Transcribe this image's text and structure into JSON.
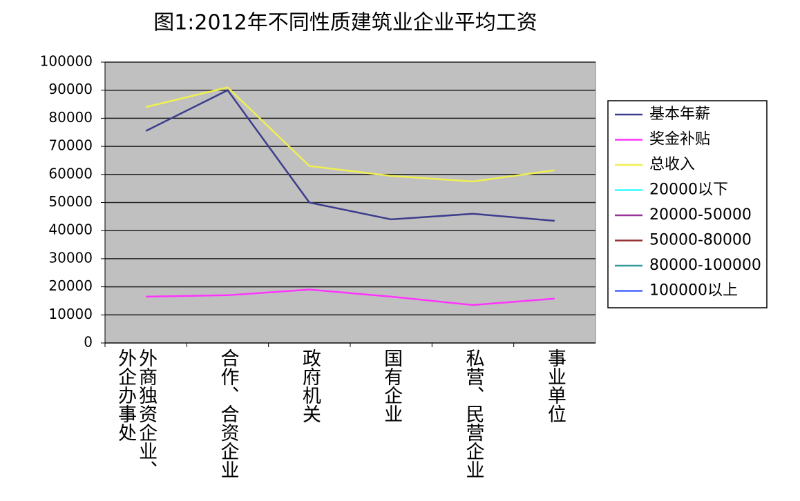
{
  "chart_data": {
    "type": "line",
    "title": "图1:2012年不同性质建筑业企业平均工资",
    "categories": [
      "外商独资企业、外企办事处",
      "合作、合资企业",
      "政府机关",
      "国有企业",
      "私营、民营企业",
      "事业单位"
    ],
    "series": [
      {
        "name": "基本年薪",
        "color": "#3c3c8c",
        "values": [
          75500,
          90000,
          50000,
          44000,
          46000,
          43500
        ]
      },
      {
        "name": "奖金补贴",
        "color": "#ff33ff",
        "values": [
          16500,
          17000,
          19000,
          16500,
          13500,
          15800
        ]
      },
      {
        "name": "总收入",
        "color": "#f0f050",
        "values": [
          84000,
          91000,
          63000,
          59500,
          57500,
          61500
        ]
      },
      {
        "name": "20000以下",
        "color": "#33ffff",
        "values": [
          null,
          null,
          null,
          null,
          null,
          null
        ]
      },
      {
        "name": "20000-50000",
        "color": "#993399",
        "values": [
          null,
          null,
          null,
          null,
          null,
          null
        ]
      },
      {
        "name": "50000-80000",
        "color": "#993333",
        "values": [
          null,
          null,
          null,
          null,
          null,
          null
        ]
      },
      {
        "name": "80000-100000",
        "color": "#339999",
        "values": [
          null,
          null,
          null,
          null,
          null,
          null
        ]
      },
      {
        "name": "100000以上",
        "color": "#4466ff",
        "values": [
          null,
          null,
          null,
          null,
          null,
          null
        ]
      }
    ],
    "ylim": [
      0,
      100000
    ],
    "yticks": [
      0,
      10000,
      20000,
      30000,
      40000,
      50000,
      60000,
      70000,
      80000,
      90000,
      100000
    ],
    "grid": true,
    "legend": "right"
  }
}
